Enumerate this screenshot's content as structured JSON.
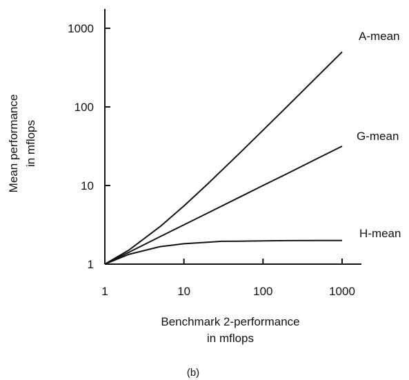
{
  "chart_data": {
    "type": "line",
    "title": "",
    "xlabel": [
      "Benchmark 2-performance",
      "in mflops"
    ],
    "ylabel": [
      "Mean performance",
      "in mflops"
    ],
    "x_scale": "log",
    "y_scale": "log",
    "xlim": [
      1,
      1000
    ],
    "ylim": [
      1,
      1000
    ],
    "x_ticks": [
      "1",
      "10",
      "100",
      "1000"
    ],
    "y_ticks": [
      "1",
      "10",
      "100",
      "1000"
    ],
    "grid": false,
    "legend": "none",
    "series": [
      {
        "name": "A-mean",
        "x": [
          1,
          2,
          5,
          10,
          20,
          50,
          100,
          200,
          500,
          1000
        ],
        "y": [
          1,
          1.5,
          3,
          5.5,
          10.5,
          25.5,
          50.5,
          100.5,
          250.5,
          500.5
        ]
      },
      {
        "name": "G-mean",
        "x": [
          1,
          2,
          5,
          10,
          20,
          50,
          100,
          200,
          500,
          1000
        ],
        "y": [
          1,
          1.41,
          2.24,
          3.16,
          4.47,
          7.07,
          10,
          14.1,
          22.4,
          31.6
        ]
      },
      {
        "name": "H-mean",
        "x": [
          1,
          2,
          5,
          10,
          20,
          30,
          50,
          100,
          200,
          500,
          1000
        ],
        "y": [
          1,
          1.33,
          1.67,
          1.82,
          1.9,
          1.95,
          1.96,
          1.98,
          1.99,
          2.0,
          2.0
        ]
      }
    ],
    "caption": "(b)"
  }
}
